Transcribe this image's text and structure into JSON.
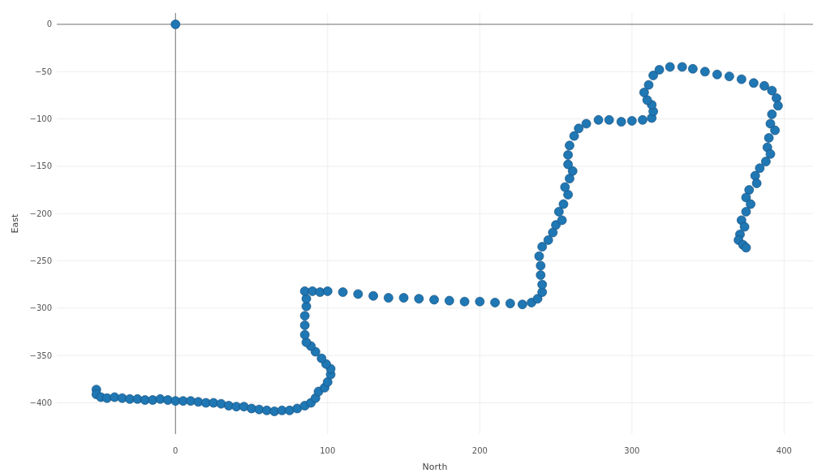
{
  "chart_data": {
    "type": "scatter",
    "xlabel": "North",
    "ylabel": "East",
    "xlim": [
      -78,
      419
    ],
    "ylim": [
      -433,
      12
    ],
    "xticks": [
      0,
      100,
      200,
      300,
      400
    ],
    "yticks": [
      0,
      -50,
      -100,
      -150,
      -200,
      -250,
      -300,
      -350,
      -400
    ],
    "grid": true,
    "marker": "circle",
    "series": [
      {
        "color": "#1f77b4",
        "x": [
          0
        ],
        "values": [
          0
        ]
      },
      {
        "color": "#1f77b4",
        "x": [
          -52,
          -52,
          -49,
          -45,
          -40,
          -35,
          -30,
          -25,
          -20,
          -15,
          -10,
          -5,
          0,
          5,
          10,
          15,
          20,
          25,
          30,
          35,
          40,
          45,
          50,
          55,
          60,
          65,
          70,
          75,
          80,
          85,
          89,
          92,
          94,
          98,
          100,
          102,
          102,
          99,
          96,
          92,
          89,
          86,
          85,
          85,
          85,
          86,
          86,
          85,
          90,
          95,
          100,
          110,
          120,
          130,
          140,
          150,
          160,
          170,
          180,
          190,
          200,
          210,
          220,
          228,
          234,
          238,
          241,
          241,
          240,
          240,
          239,
          241,
          245,
          248,
          250,
          254,
          252,
          255,
          258,
          256,
          259,
          261,
          258,
          258,
          259,
          262,
          265,
          270,
          278,
          285,
          293,
          300,
          307,
          313,
          314,
          313,
          310,
          308,
          311,
          314,
          318,
          325,
          333,
          340,
          348,
          356,
          364,
          372,
          380,
          387,
          392,
          395,
          396,
          392,
          391,
          394,
          390,
          389,
          391,
          388,
          384,
          381,
          382,
          377,
          375,
          378,
          375,
          372,
          374,
          371,
          370,
          373,
          375
        ],
        "values": [
          -386,
          -391,
          -394,
          -395,
          -394,
          -395,
          -396,
          -396,
          -397,
          -397,
          -396,
          -397,
          -398,
          -398,
          -398,
          -399,
          -400,
          -400,
          -401,
          -403,
          -404,
          -404,
          -406,
          -407,
          -408,
          -409,
          -408,
          -408,
          -406,
          -403,
          -400,
          -395,
          -388,
          -384,
          -378,
          -370,
          -364,
          -359,
          -353,
          -346,
          -340,
          -336,
          -328,
          -318,
          -308,
          -298,
          -290,
          -282,
          -282,
          -283,
          -282,
          -283,
          -285,
          -287,
          -289,
          -289,
          -290,
          -291,
          -292,
          -293,
          -293,
          -294,
          -295,
          -296,
          -294,
          -290,
          -283,
          -275,
          -265,
          -255,
          -245,
          -235,
          -228,
          -220,
          -212,
          -207,
          -198,
          -190,
          -180,
          -172,
          -163,
          -155,
          -148,
          -138,
          -128,
          -118,
          -110,
          -105,
          -101,
          -101,
          -103,
          -102,
          -101,
          -99,
          -92,
          -85,
          -80,
          -72,
          -64,
          -54,
          -48,
          -45,
          -45,
          -47,
          -50,
          -53,
          -55,
          -58,
          -62,
          -65,
          -70,
          -78,
          -86,
          -95,
          -105,
          -112,
          -120,
          -130,
          -137,
          -145,
          -152,
          -160,
          -168,
          -175,
          -183,
          -190,
          -198,
          -207,
          -214,
          -222,
          -228,
          -233,
          -236
        ]
      }
    ]
  }
}
